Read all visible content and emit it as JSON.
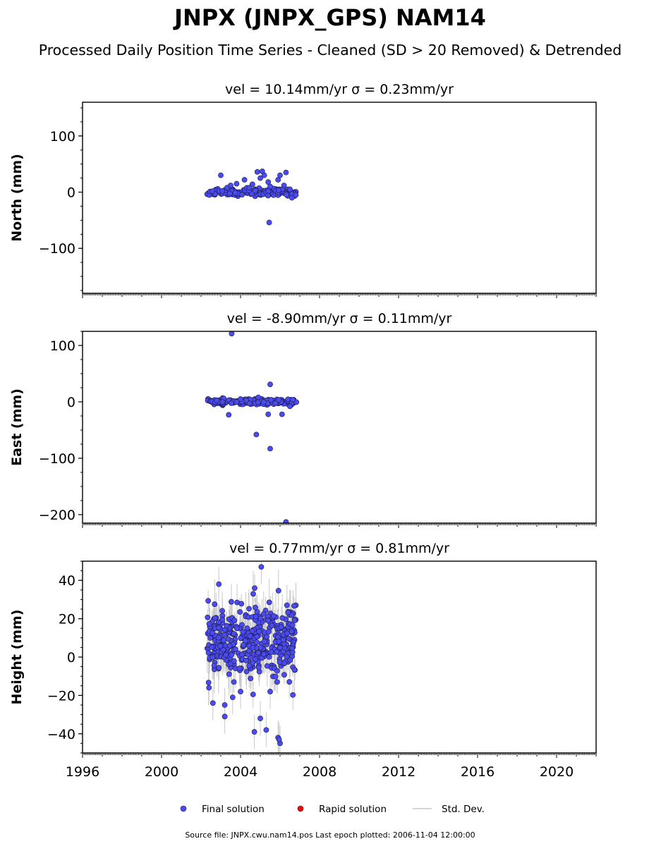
{
  "title": "JNPX (JNPX_GPS) NAM14",
  "subtitle": "Processed Daily Position Time Series - Cleaned (SD > 20 Removed) & Detrended",
  "legend": {
    "final": "Final solution",
    "rapid": "Rapid solution",
    "stddev": "Std. Dev."
  },
  "footer": "Source file: JNPX.cwu.nam14.pos  Last epoch plotted: 2006-11-04 12:00:00",
  "colors": {
    "final": "#4b4bf0",
    "rapid": "#e01010",
    "stddev": "#c8c8c8",
    "marker_edge": "#1a1a40"
  },
  "chart_data": [
    {
      "type": "scatter",
      "title": "vel = 10.14mm/yr   σ = 0.23mm/yr",
      "xlabel": "",
      "ylabel": "North (mm)",
      "xlim": [
        1996.0,
        2022.0
      ],
      "ylim": [
        -180,
        160
      ],
      "yticks": [
        {
          "v": 100,
          "label": "100"
        },
        {
          "v": 0,
          "label": "0"
        },
        {
          "v": -100,
          "label": "−100"
        }
      ],
      "ytick_minor_step": 25,
      "show_xtick_labels": false,
      "data_range": [
        2002.3,
        2006.85
      ],
      "bulk": {
        "center": 0,
        "spread": 3,
        "n": 190
      },
      "series": [
        {
          "name": "Final solution",
          "points": [
            [
              2003.0,
              30
            ],
            [
              2003.5,
              12
            ],
            [
              2003.8,
              15
            ],
            [
              2004.2,
              22
            ],
            [
              2004.45,
              8
            ],
            [
              2004.6,
              14
            ],
            [
              2004.85,
              36
            ],
            [
              2005.0,
              25
            ],
            [
              2005.1,
              37
            ],
            [
              2005.2,
              30
            ],
            [
              2005.4,
              18
            ],
            [
              2005.5,
              10
            ],
            [
              2005.45,
              -54
            ],
            [
              2005.9,
              22
            ],
            [
              2006.0,
              30
            ],
            [
              2006.2,
              12
            ],
            [
              2006.3,
              35
            ],
            [
              2006.5,
              5
            ],
            [
              2006.6,
              -10
            ],
            [
              2006.8,
              -5
            ]
          ]
        }
      ]
    },
    {
      "type": "scatter",
      "title": "vel = -8.90mm/yr   σ = 0.11mm/yr",
      "xlabel": "",
      "ylabel": "East (mm)",
      "xlim": [
        1996.0,
        2022.0
      ],
      "ylim": [
        -215,
        125
      ],
      "yticks": [
        {
          "v": 100,
          "label": "100"
        },
        {
          "v": 0,
          "label": "0"
        },
        {
          "v": -100,
          "label": "−100"
        },
        {
          "v": -200,
          "label": "−200"
        }
      ],
      "ytick_minor_step": 25,
      "show_xtick_labels": false,
      "data_range": [
        2002.3,
        2006.85
      ],
      "bulk": {
        "center": 0,
        "spread": 2.5,
        "n": 190
      },
      "series": [
        {
          "name": "Final solution",
          "points": [
            [
              2003.55,
              121
            ],
            [
              2005.5,
              31
            ],
            [
              2003.4,
              -23
            ],
            [
              2004.8,
              -58
            ],
            [
              2005.4,
              -22
            ],
            [
              2005.5,
              -83
            ],
            [
              2006.1,
              -22
            ],
            [
              2006.3,
              -213
            ],
            [
              2004.0,
              5
            ],
            [
              2004.9,
              8
            ],
            [
              2006.5,
              -8
            ]
          ]
        }
      ]
    },
    {
      "type": "scatter",
      "title": "vel = 0.77mm/yr   σ = 0.81mm/yr",
      "xlabel": "",
      "ylabel": "Height (mm)",
      "xlim": [
        1996.0,
        2022.0
      ],
      "ylim": [
        -50,
        50
      ],
      "yticks": [
        {
          "v": 40,
          "label": "40"
        },
        {
          "v": 20,
          "label": "20"
        },
        {
          "v": 0,
          "label": "0"
        },
        {
          "v": -20,
          "label": "−20"
        },
        {
          "v": -40,
          "label": "−40"
        }
      ],
      "ytick_minor_step": 5,
      "show_xtick_labels": true,
      "xticks": [
        {
          "v": 1996,
          "label": "1996"
        },
        {
          "v": 2000,
          "label": "2000"
        },
        {
          "v": 2004,
          "label": "2004"
        },
        {
          "v": 2008,
          "label": "2008"
        },
        {
          "v": 2012,
          "label": "2012"
        },
        {
          "v": 2016,
          "label": "2016"
        },
        {
          "v": 2020,
          "label": "2020"
        }
      ],
      "data_range": [
        2002.3,
        2006.85
      ],
      "bulk": {
        "center": 8,
        "spread": 10,
        "n": 420
      },
      "series": [
        {
          "name": "Final solution",
          "points": [
            [
              2002.9,
              38
            ],
            [
              2005.05,
              47
            ],
            [
              2004.7,
              -39
            ],
            [
              2005.3,
              -38
            ],
            [
              2005.9,
              -42
            ],
            [
              2006.0,
              -45
            ],
            [
              2005.95,
              -43
            ],
            [
              2003.2,
              -31
            ],
            [
              2005.0,
              -32
            ],
            [
              2003.6,
              -21
            ],
            [
              2002.6,
              -24
            ],
            [
              2003.2,
              -25
            ],
            [
              2004.0,
              -18
            ],
            [
              2005.5,
              -18
            ],
            [
              2002.4,
              -16
            ]
          ]
        }
      ]
    }
  ]
}
